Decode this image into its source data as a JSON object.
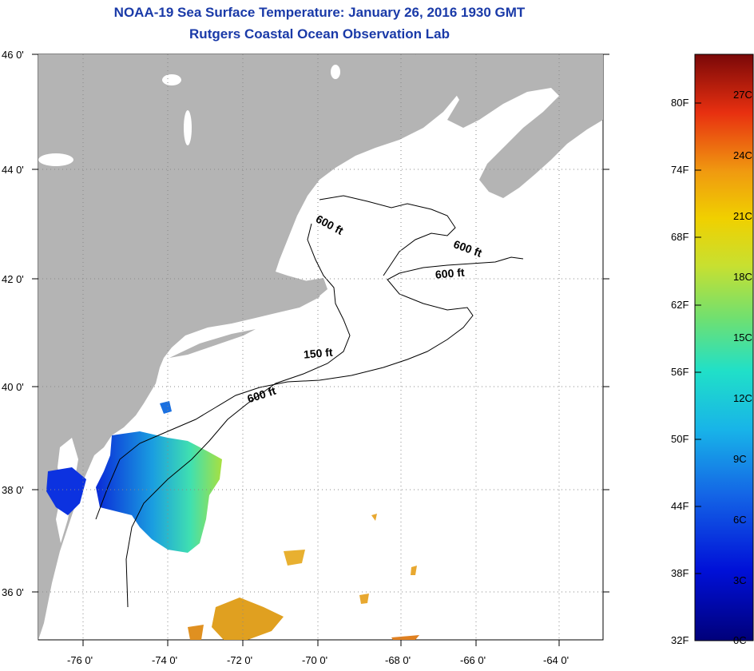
{
  "header": {
    "title": "NOAA-19 Sea Surface Temperature:  January 26, 2016 1930 GMT",
    "subtitle": "Rutgers Coastal Ocean Observation Lab"
  },
  "axes": {
    "lat_labels": [
      "46 0'",
      "44 0'",
      "42 0'",
      "40 0'",
      "38 0'",
      "36 0'"
    ],
    "lon_labels": [
      "-76 0'",
      "-74 0'",
      "-72 0'",
      "-70 0'",
      "-68 0'",
      "-66 0'",
      "-64 0'"
    ]
  },
  "depth_labels": [
    "600 ft",
    "600 ft",
    "600 ft",
    "150 ft",
    "600 ft"
  ],
  "colorbar": {
    "fahrenheit": [
      "80F",
      "74F",
      "68F",
      "62F",
      "56F",
      "50F",
      "44F",
      "38F",
      "32F"
    ],
    "celsius": [
      "27C",
      "24C",
      "21C",
      "18C",
      "15C",
      "12C",
      "9C",
      "6C",
      "3C",
      "0C"
    ]
  },
  "colors": {
    "land": "#b4b4b4",
    "title": "#1a3aa8"
  }
}
